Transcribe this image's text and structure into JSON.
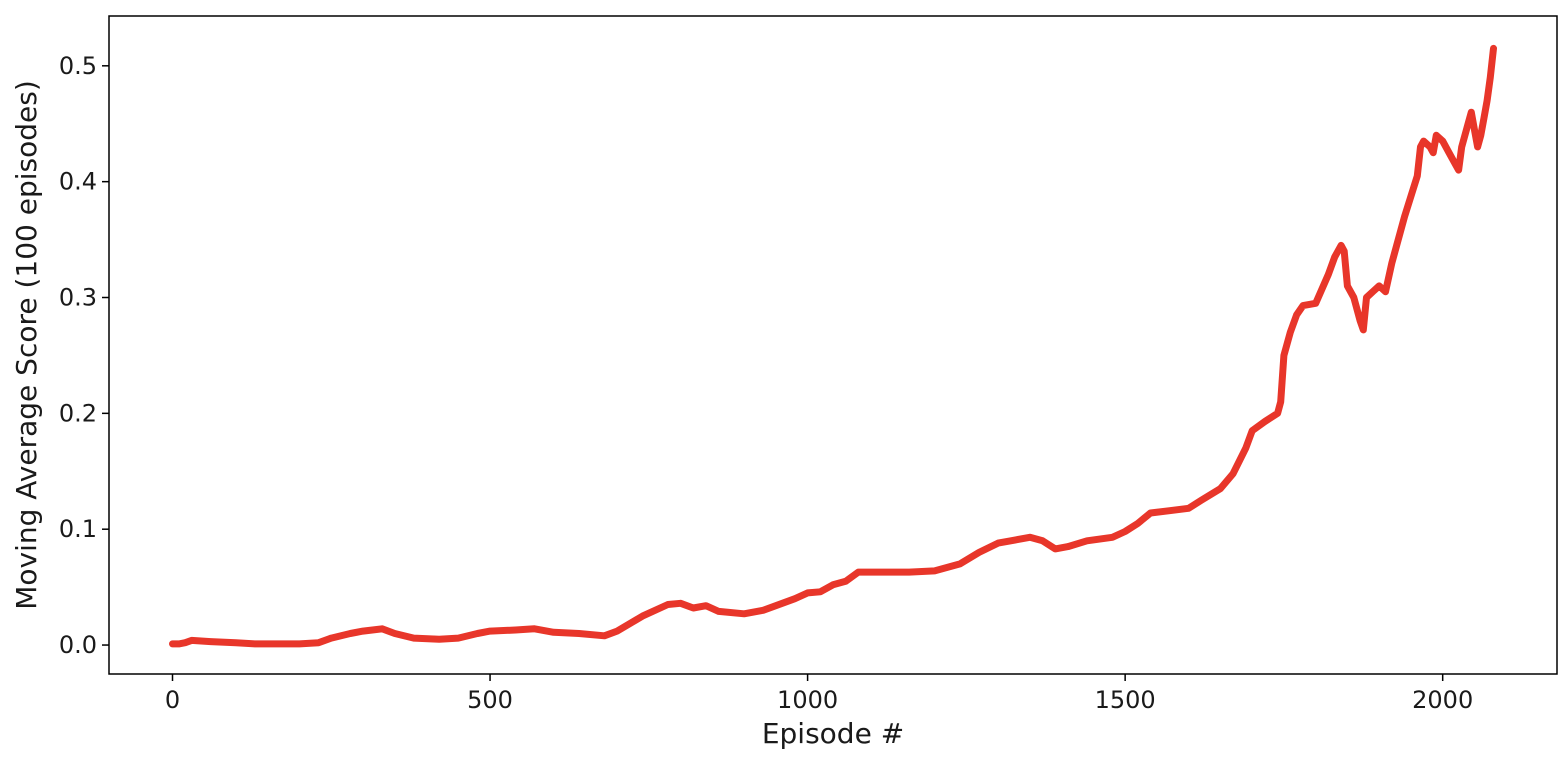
{
  "chart_data": {
    "type": "line",
    "title": "",
    "xlabel": "Episode #",
    "ylabel": "Moving Average Score (100 episodes)",
    "xlim": [
      -100,
      2180
    ],
    "ylim": [
      -0.025,
      0.543
    ],
    "xticks": [
      0,
      500,
      1000,
      1500,
      2000
    ],
    "xtick_labels": [
      "0",
      "500",
      "1000",
      "1500",
      "2000"
    ],
    "yticks": [
      0.0,
      0.1,
      0.2,
      0.3,
      0.4,
      0.5
    ],
    "ytick_labels": [
      "0.0",
      "0.1",
      "0.2",
      "0.3",
      "0.4",
      "0.5"
    ],
    "grid": false,
    "line_color": "#e8362a",
    "series": [
      {
        "x": [
          0,
          10,
          20,
          30,
          60,
          100,
          130,
          200,
          230,
          250,
          280,
          300,
          330,
          350,
          380,
          420,
          450,
          480,
          500,
          540,
          570,
          600,
          640,
          680,
          700,
          740,
          780,
          800,
          820,
          840,
          860,
          900,
          930,
          950,
          980,
          1000,
          1020,
          1040,
          1060,
          1080,
          1120,
          1160,
          1200,
          1240,
          1270,
          1300,
          1320,
          1350,
          1370,
          1390,
          1410,
          1440,
          1480,
          1500,
          1520,
          1540,
          1570,
          1600,
          1620,
          1650,
          1670,
          1690,
          1700,
          1720,
          1740,
          1745,
          1750,
          1760,
          1770,
          1780,
          1800,
          1820,
          1830,
          1840,
          1845,
          1850,
          1860,
          1870,
          1875,
          1880,
          1890,
          1900,
          1910,
          1920,
          1940,
          1960,
          1965,
          1970,
          1980,
          1985,
          1990,
          2000,
          2010,
          2020,
          2025,
          2030,
          2040,
          2045,
          2050,
          2055,
          2060,
          2065,
          2070,
          2075,
          2080
        ],
        "y": [
          0.001,
          0.001,
          0.002,
          0.004,
          0.003,
          0.002,
          0.001,
          0.001,
          0.002,
          0.006,
          0.01,
          0.012,
          0.014,
          0.01,
          0.006,
          0.005,
          0.006,
          0.01,
          0.012,
          0.013,
          0.014,
          0.011,
          0.01,
          0.008,
          0.012,
          0.025,
          0.035,
          0.036,
          0.032,
          0.034,
          0.029,
          0.027,
          0.03,
          0.034,
          0.04,
          0.045,
          0.046,
          0.052,
          0.055,
          0.063,
          0.063,
          0.063,
          0.064,
          0.07,
          0.08,
          0.088,
          0.09,
          0.093,
          0.09,
          0.083,
          0.085,
          0.09,
          0.093,
          0.098,
          0.105,
          0.114,
          0.116,
          0.118,
          0.125,
          0.135,
          0.148,
          0.17,
          0.185,
          0.193,
          0.2,
          0.21,
          0.25,
          0.27,
          0.285,
          0.293,
          0.295,
          0.32,
          0.335,
          0.345,
          0.34,
          0.31,
          0.3,
          0.28,
          0.272,
          0.3,
          0.305,
          0.31,
          0.305,
          0.33,
          0.37,
          0.405,
          0.43,
          0.435,
          0.43,
          0.425,
          0.44,
          0.435,
          0.425,
          0.415,
          0.41,
          0.43,
          0.45,
          0.46,
          0.445,
          0.43,
          0.44,
          0.455,
          0.47,
          0.49,
          0.515
        ]
      }
    ]
  }
}
